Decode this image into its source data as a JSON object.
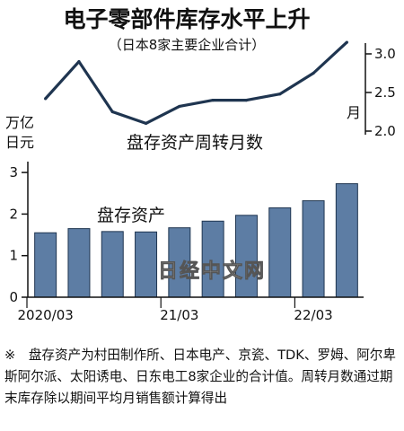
{
  "chart_data": [
    {
      "id": "turnover",
      "type": "line",
      "title": "电子零部件库存水平上升",
      "subtitle": "（日本8家主要企业合计）",
      "series": [
        {
          "name": "盘存资产周转月数",
          "values": [
            2.42,
            2.9,
            2.25,
            2.1,
            2.32,
            2.4,
            2.4,
            2.48,
            2.75,
            3.15
          ]
        }
      ],
      "ylabel": "月",
      "ylim": [
        2.0,
        3.2
      ],
      "yticks": [
        "3.0",
        "2.5",
        "2.0"
      ],
      "color": "#1f3550"
    },
    {
      "id": "inventory",
      "type": "bar",
      "series": [
        {
          "name": "盘存资产",
          "values": [
            1.55,
            1.65,
            1.58,
            1.57,
            1.67,
            1.83,
            1.97,
            2.15,
            2.32,
            2.73
          ]
        }
      ],
      "ylabel": "万亿日元",
      "ylim": [
        0,
        3.2
      ],
      "yticks": [
        "0",
        "1",
        "2",
        "3"
      ],
      "xticks": [
        "2020/03",
        "21/03",
        "22/03"
      ],
      "bar_color": "#5d7da4"
    }
  ],
  "watermark": "日经中文网",
  "note": "※　盘存资产为村田制作所、日本电产、京瓷、TDK、罗姆、阿尔卑斯阿尔派、太阳诱电、日东电工8家企业的合计值。周转月数通过期末库存除以期间平均月销售额计算得出"
}
